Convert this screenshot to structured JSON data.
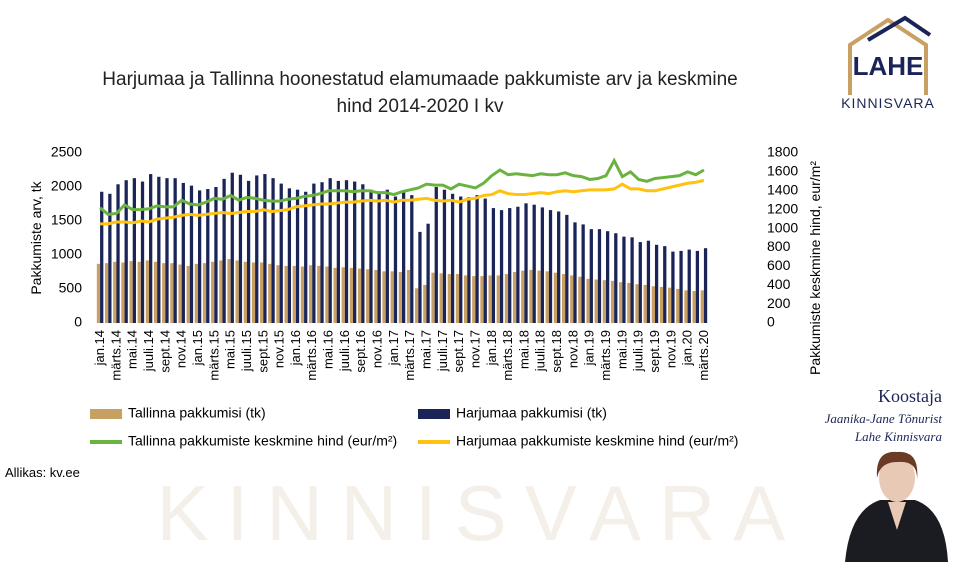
{
  "chart_data": {
    "type": "bar_line",
    "title": "Harjumaa ja Tallinna hoonestatud elamumaade pakkumiste arv ja keskmine hind 2014-2020 I kv",
    "ylabel": "Pakkumiste arv, tk",
    "y2label": "Pakkumiste keskmine hind, eur/m²",
    "source": "Allikas: kv.ee",
    "categories": [
      "jan.14",
      null,
      "märts.14",
      null,
      "mai.14",
      null,
      "juuli.14",
      null,
      "sept.14",
      null,
      "nov.14",
      null,
      "jan.15",
      null,
      "märts.15",
      null,
      "mai.15",
      null,
      "juuli.15",
      null,
      "sept.15",
      null,
      "nov.15",
      null,
      "jan.16",
      null,
      "märts.16",
      null,
      "mai.16",
      null,
      "juuli.16",
      null,
      "sept.16",
      null,
      "nov.16",
      null,
      "jan.17",
      null,
      "märts.17",
      null,
      "mai.17",
      null,
      "juuli.17",
      null,
      "sept.17",
      null,
      "nov.17",
      null,
      "jan.18",
      null,
      "märts.18",
      null,
      "mai.18",
      null,
      "juuli.18",
      null,
      "sept.18",
      null,
      "nov.18",
      null,
      "jan.19",
      null,
      "märts.19",
      null,
      "mai.19",
      null,
      "juuli.19",
      null,
      "sept.19",
      null,
      "nov.19",
      null,
      "jan.20",
      null,
      "märts.20"
    ],
    "series": [
      {
        "name": "Tallinna pakkumisi (tk)",
        "color": "#c9a063",
        "kind": "bar",
        "values": [
          870,
          880,
          900,
          890,
          910,
          900,
          920,
          900,
          880,
          880,
          860,
          840,
          870,
          880,
          900,
          920,
          940,
          920,
          900,
          890,
          890,
          870,
          850,
          840,
          840,
          830,
          850,
          840,
          830,
          810,
          820,
          810,
          800,
          790,
          780,
          760,
          760,
          750,
          780,
          510,
          560,
          740,
          730,
          720,
          720,
          700,
          690,
          690,
          700,
          700,
          720,
          750,
          770,
          780,
          770,
          760,
          740,
          720,
          700,
          680,
          650,
          640,
          630,
          620,
          600,
          590,
          570,
          560,
          540,
          530,
          520,
          500,
          480,
          470,
          480
        ]
      },
      {
        "name": "Harjumaa pakkumisi (tk)",
        "color": "#1a2456",
        "kind": "bar",
        "values": [
          1930,
          1900,
          2040,
          2100,
          2130,
          2080,
          2190,
          2150,
          2130,
          2130,
          2060,
          2020,
          1950,
          1970,
          2000,
          2120,
          2210,
          2180,
          2090,
          2170,
          2190,
          2130,
          2050,
          1980,
          1960,
          1930,
          2050,
          2070,
          2130,
          2090,
          2100,
          2080,
          2040,
          1960,
          1930,
          1960,
          1860,
          1920,
          1880,
          1340,
          1460,
          2000,
          1960,
          1900,
          1860,
          1850,
          1880,
          1830,
          1690,
          1660,
          1690,
          1710,
          1760,
          1740,
          1700,
          1660,
          1640,
          1590,
          1480,
          1450,
          1380,
          1380,
          1350,
          1320,
          1270,
          1260,
          1190,
          1210,
          1150,
          1130,
          1050,
          1060,
          1080,
          1060,
          1100
        ]
      },
      {
        "name": "Tallinna pakkumiste keskmine hind (eur/m²)",
        "color": "#6ab33e",
        "kind": "line",
        "axis": "y2",
        "values": [
          1220,
          1150,
          1160,
          1250,
          1200,
          1200,
          1210,
          1240,
          1230,
          1230,
          1300,
          1260,
          1250,
          1280,
          1320,
          1310,
          1350,
          1300,
          1330,
          1320,
          1300,
          1290,
          1290,
          1310,
          1320,
          1340,
          1350,
          1370,
          1400,
          1400,
          1400,
          1390,
          1400,
          1400,
          1380,
          1380,
          1360,
          1390,
          1410,
          1430,
          1470,
          1460,
          1460,
          1420,
          1470,
          1450,
          1430,
          1480,
          1560,
          1620,
          1570,
          1580,
          1570,
          1560,
          1580,
          1570,
          1570,
          1590,
          1560,
          1550,
          1520,
          1530,
          1560,
          1720,
          1550,
          1600,
          1520,
          1500,
          1530,
          1540,
          1550,
          1560,
          1600,
          1570,
          1620
        ]
      },
      {
        "name": "Harjumaa pakkumiste keskmine hind (eur/m²)",
        "color": "#ffc20e",
        "kind": "line",
        "axis": "y2",
        "values": [
          1050,
          1050,
          1070,
          1070,
          1060,
          1080,
          1070,
          1100,
          1110,
          1120,
          1140,
          1150,
          1140,
          1150,
          1160,
          1170,
          1160,
          1170,
          1180,
          1180,
          1200,
          1180,
          1190,
          1200,
          1230,
          1240,
          1250,
          1260,
          1260,
          1270,
          1280,
          1280,
          1290,
          1300,
          1290,
          1300,
          1280,
          1300,
          1300,
          1310,
          1320,
          1300,
          1290,
          1300,
          1280,
          1310,
          1320,
          1350,
          1360,
          1400,
          1370,
          1360,
          1360,
          1370,
          1380,
          1370,
          1390,
          1400,
          1390,
          1400,
          1410,
          1410,
          1410,
          1420,
          1470,
          1420,
          1420,
          1400,
          1400,
          1420,
          1440,
          1460,
          1480,
          1490,
          1510
        ]
      }
    ],
    "ylim": [
      0,
      2500
    ],
    "yticks": [
      0,
      500,
      1000,
      1500,
      2000,
      2500
    ],
    "y2lim": [
      0,
      1800
    ],
    "y2ticks": [
      0,
      200,
      400,
      600,
      800,
      1000,
      1200,
      1400,
      1600,
      1800
    ],
    "grid": false
  },
  "logo": {
    "mark": "LAHE",
    "name": "KINNISVARA"
  },
  "author": {
    "heading": "Koostaja",
    "name": "Jaanika-Jane Tõnurist",
    "company": "Lahe Kinnisvara"
  },
  "watermark": "KINNISVARA"
}
